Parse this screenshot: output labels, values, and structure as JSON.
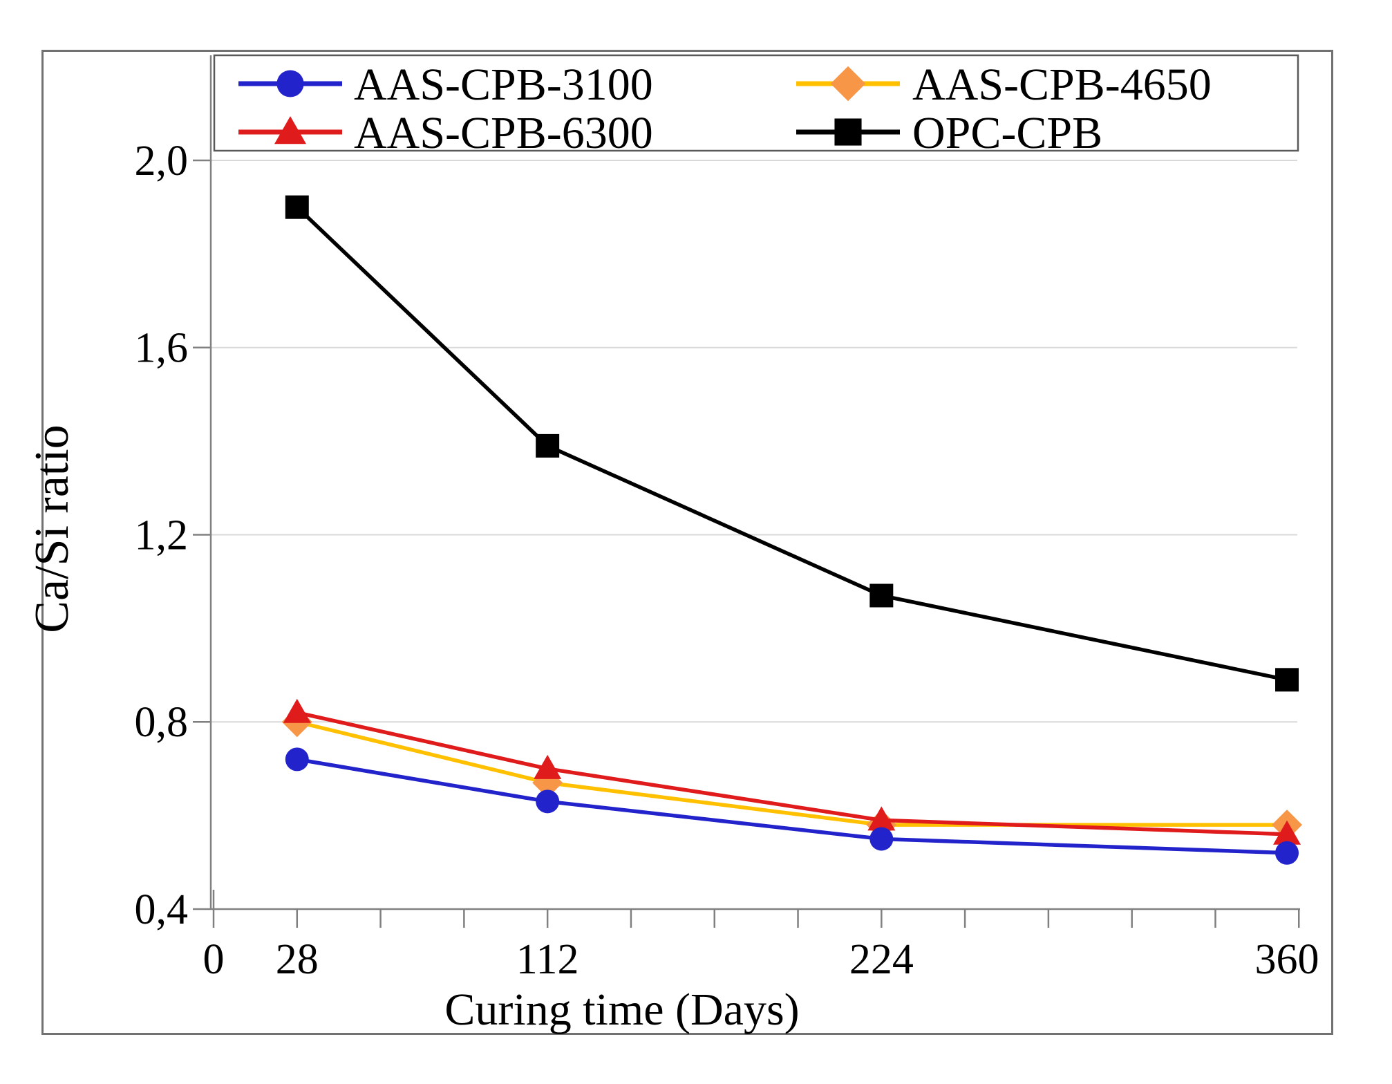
{
  "chart_data": {
    "type": "line",
    "x": [
      28,
      112,
      224,
      360
    ],
    "x_axis": {
      "title": "Curing time (Days)",
      "ticks": [
        {
          "value": 0,
          "label": "0"
        },
        {
          "value": 28,
          "label": "28"
        },
        {
          "value": 112,
          "label": "112"
        },
        {
          "value": 224,
          "label": "224"
        },
        {
          "value": 360,
          "label": "360"
        }
      ],
      "minor_tick_step_days": 28,
      "range": [
        0,
        375
      ]
    },
    "y_axis": {
      "title": "Ca/Si ratio",
      "ticks": [
        {
          "value": 0.4,
          "label": "0,4"
        },
        {
          "value": 0.8,
          "label": "0,8"
        },
        {
          "value": 1.2,
          "label": "1,2"
        },
        {
          "value": 1.6,
          "label": "1,6"
        },
        {
          "value": 2.0,
          "label": "2,0"
        }
      ],
      "range": [
        0.4,
        2.23
      ],
      "decimal_separator": ","
    },
    "series": [
      {
        "name": "AAS-CPB-3100",
        "marker": "circle",
        "line_color": "#2323CC",
        "marker_color": "#2323CC",
        "values": [
          0.72,
          0.63,
          0.55,
          0.52
        ]
      },
      {
        "name": "AAS-CPB-4650",
        "marker": "diamond",
        "line_color": "#FFC000",
        "marker_color": "#F79646",
        "values": [
          0.8,
          0.67,
          0.58,
          0.58
        ]
      },
      {
        "name": "AAS-CPB-6300",
        "marker": "triangle",
        "line_color": "#E01B1B",
        "marker_color": "#E01B1B",
        "values": [
          0.82,
          0.7,
          0.59,
          0.56
        ]
      },
      {
        "name": "OPC-CPB",
        "marker": "square",
        "line_color": "#000000",
        "marker_color": "#000000",
        "values": [
          1.9,
          1.39,
          1.07,
          0.89
        ]
      }
    ],
    "legend": {
      "position": "top",
      "columns": 2,
      "entries": [
        "AAS-CPB-3100",
        "AAS-CPB-4650",
        "AAS-CPB-6300",
        "OPC-CPB"
      ]
    },
    "grid": "horizontal",
    "styles": {
      "background": "#FFFFFF",
      "grid_color": "#D9D9D9",
      "axis_color": "#808080",
      "frame_color": "#717171",
      "legend_border_color": "#595959",
      "text_color": "#000000"
    }
  }
}
